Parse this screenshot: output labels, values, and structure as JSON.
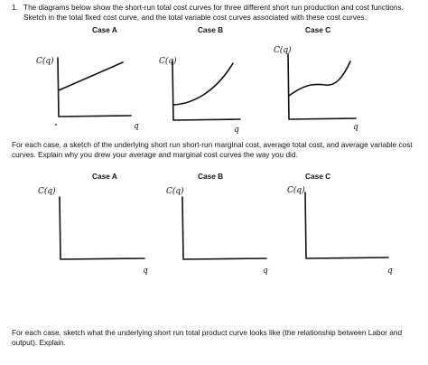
{
  "question": {
    "number": "1.",
    "text_line1": "The diagrams below show the short-run total cost curves for three different short run production and cost functions.",
    "text_line2": "Sketch in the total fixed cost curve, and the total variable cost curves associated with these cost curves."
  },
  "row1": {
    "cases": [
      "Case A",
      "Case B",
      "Case C"
    ],
    "y_label": "C(q)",
    "x_label": "q"
  },
  "mid_text": {
    "line1": "For each case, a sketch of the underlying short run short-run marginal cost, average total cost, and average variable cost",
    "line2": "curves. Explain why you drew your average and marginal cost curves the way you did."
  },
  "row2": {
    "cases": [
      "Case A",
      "Case B",
      "Case C"
    ],
    "y_label": "C(q)",
    "x_label": "q"
  },
  "bottom_text": {
    "line1": "For each case, sketch what the underlying short run total product curve looks like (the relationship between Labor and",
    "line2": "output). Explain."
  }
}
